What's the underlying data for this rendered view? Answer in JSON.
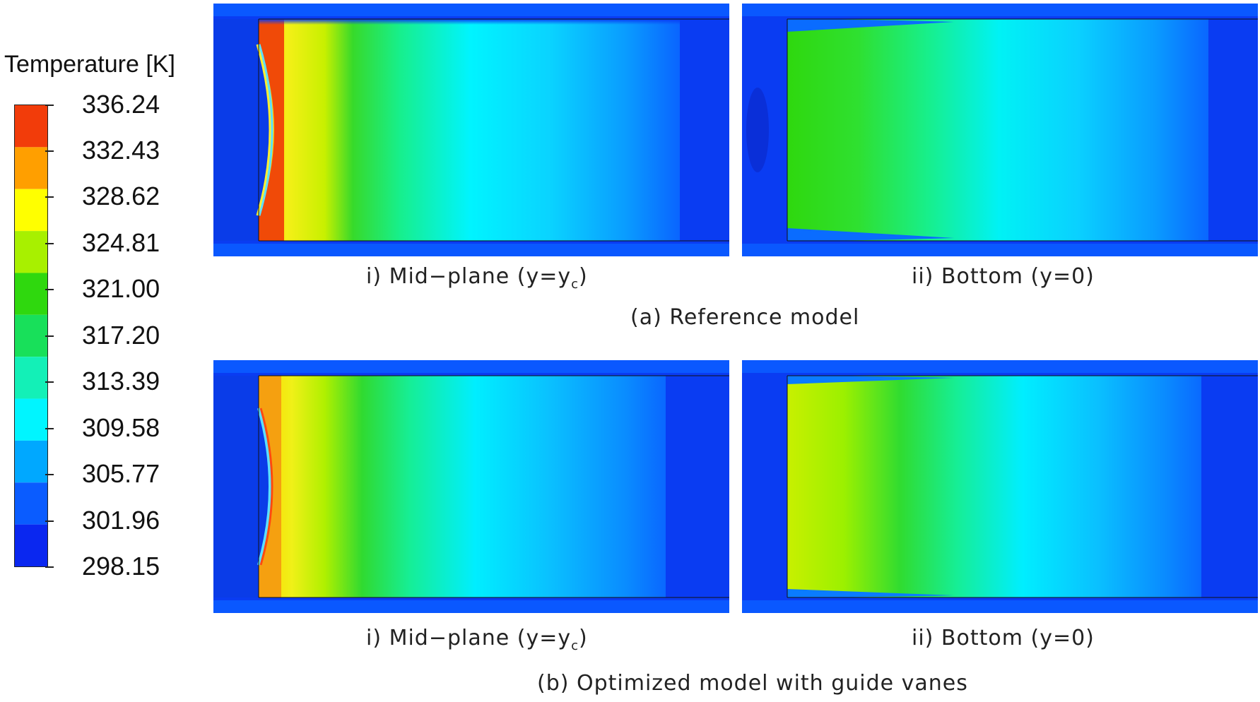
{
  "legend": {
    "title": "Temperature [K]",
    "ticks": [
      "336.24",
      "332.43",
      "328.62",
      "324.81",
      "321.00",
      "317.20",
      "313.39",
      "309.58",
      "305.77",
      "301.96",
      "298.15"
    ],
    "bands": [
      "#f23c0a",
      "#ff9f00",
      "#ffff00",
      "#a8f000",
      "#2fd80e",
      "#18e05a",
      "#13f0b7",
      "#00f5ff",
      "#00a8ff",
      "#0a5cff",
      "#0a27f0"
    ]
  },
  "panels": {
    "a_mid": {
      "caption_prefix": "i) Mid−plane (y=y",
      "caption_sub": "c",
      "caption_suffix": ")"
    },
    "a_bottom": {
      "caption": "ii) Bottom (y=0)"
    },
    "b_mid": {
      "caption_prefix": "i) Mid−plane (y=y",
      "caption_sub": "c",
      "caption_suffix": ")"
    },
    "b_bottom": {
      "caption": "ii) Bottom (y=0)"
    }
  },
  "groups": {
    "a": "(a) Reference model",
    "b": "(b) Optimized model with guide vanes"
  }
}
